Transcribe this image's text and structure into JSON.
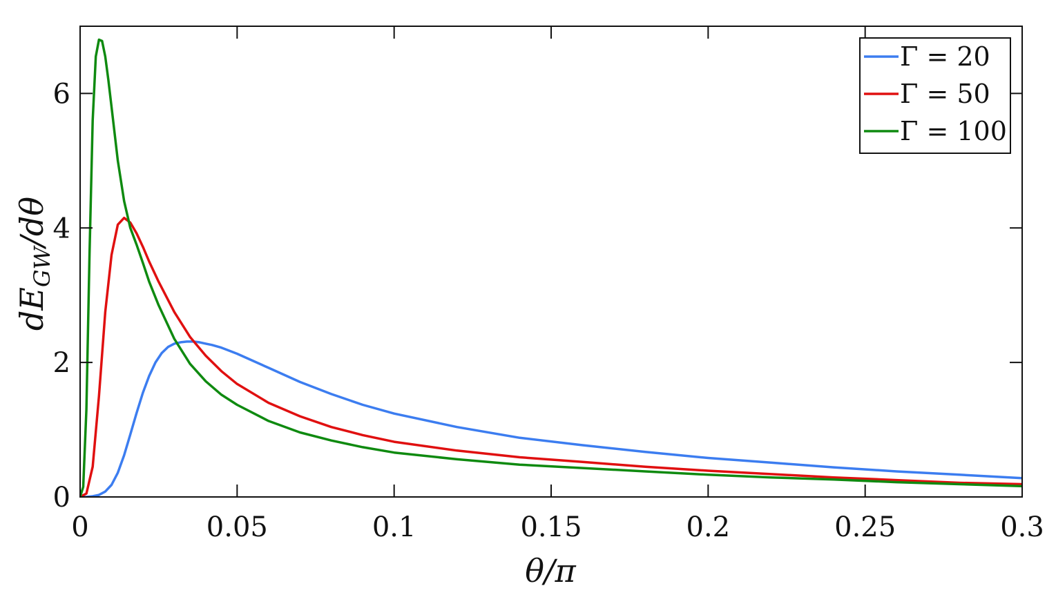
{
  "chart_data": {
    "type": "line",
    "title": "",
    "xlabel": "θ/π",
    "ylabel_main": "dE",
    "ylabel_sub": "GW",
    "ylabel_tail": "/dθ",
    "xlim": [
      0,
      0.3
    ],
    "ylim": [
      0,
      7
    ],
    "xticks": [
      0,
      0.05,
      0.1,
      0.15,
      0.2,
      0.25,
      0.3
    ],
    "xtick_labels": [
      "0",
      "0.05",
      "0.1",
      "0.15",
      "0.2",
      "0.25",
      "0.3"
    ],
    "yticks": [
      0,
      2,
      4,
      6
    ],
    "ytick_labels": [
      "0",
      "2",
      "4",
      "6"
    ],
    "grid": false,
    "legend_position": "top-right",
    "series": [
      {
        "name": "Γ = 20",
        "color": "#3c7df0",
        "x": [
          0,
          0.002,
          0.004,
          0.006,
          0.008,
          0.01,
          0.012,
          0.014,
          0.016,
          0.018,
          0.02,
          0.022,
          0.024,
          0.026,
          0.028,
          0.03,
          0.032,
          0.034,
          0.036,
          0.038,
          0.04,
          0.042,
          0.045,
          0.05,
          0.06,
          0.07,
          0.08,
          0.09,
          0.1,
          0.12,
          0.14,
          0.16,
          0.18,
          0.2,
          0.22,
          0.24,
          0.26,
          0.28,
          0.3
        ],
        "y": [
          0,
          0,
          0.01,
          0.03,
          0.08,
          0.18,
          0.36,
          0.62,
          0.93,
          1.25,
          1.55,
          1.8,
          2.0,
          2.14,
          2.23,
          2.28,
          2.3,
          2.31,
          2.31,
          2.3,
          2.28,
          2.26,
          2.22,
          2.13,
          1.92,
          1.71,
          1.53,
          1.37,
          1.24,
          1.04,
          0.88,
          0.77,
          0.67,
          0.58,
          0.51,
          0.44,
          0.38,
          0.33,
          0.28
        ]
      },
      {
        "name": "Γ = 50",
        "color": "#e01010",
        "x": [
          0,
          0.002,
          0.004,
          0.006,
          0.008,
          0.01,
          0.012,
          0.014,
          0.016,
          0.018,
          0.02,
          0.022,
          0.025,
          0.03,
          0.035,
          0.04,
          0.045,
          0.05,
          0.06,
          0.07,
          0.08,
          0.09,
          0.1,
          0.12,
          0.14,
          0.16,
          0.18,
          0.2,
          0.22,
          0.24,
          0.26,
          0.28,
          0.3
        ],
        "y": [
          0,
          0.05,
          0.45,
          1.5,
          2.75,
          3.6,
          4.05,
          4.15,
          4.08,
          3.92,
          3.72,
          3.5,
          3.2,
          2.75,
          2.38,
          2.1,
          1.87,
          1.68,
          1.4,
          1.2,
          1.04,
          0.92,
          0.82,
          0.69,
          0.59,
          0.52,
          0.45,
          0.39,
          0.34,
          0.29,
          0.25,
          0.21,
          0.19
        ]
      },
      {
        "name": "Γ = 100",
        "color": "#0f8a10",
        "x": [
          0,
          0.001,
          0.002,
          0.003,
          0.004,
          0.005,
          0.006,
          0.007,
          0.008,
          0.009,
          0.01,
          0.012,
          0.014,
          0.016,
          0.018,
          0.02,
          0.022,
          0.025,
          0.03,
          0.035,
          0.04,
          0.045,
          0.05,
          0.06,
          0.07,
          0.08,
          0.09,
          0.1,
          0.12,
          0.14,
          0.16,
          0.18,
          0.2,
          0.22,
          0.24,
          0.26,
          0.28,
          0.3
        ],
        "y": [
          0,
          0.15,
          1.3,
          3.6,
          5.6,
          6.55,
          6.8,
          6.78,
          6.55,
          6.2,
          5.8,
          5.0,
          4.4,
          4.0,
          3.75,
          3.48,
          3.2,
          2.85,
          2.35,
          1.98,
          1.72,
          1.52,
          1.37,
          1.13,
          0.96,
          0.84,
          0.74,
          0.66,
          0.56,
          0.48,
          0.43,
          0.38,
          0.33,
          0.29,
          0.26,
          0.22,
          0.19,
          0.16
        ]
      }
    ]
  }
}
